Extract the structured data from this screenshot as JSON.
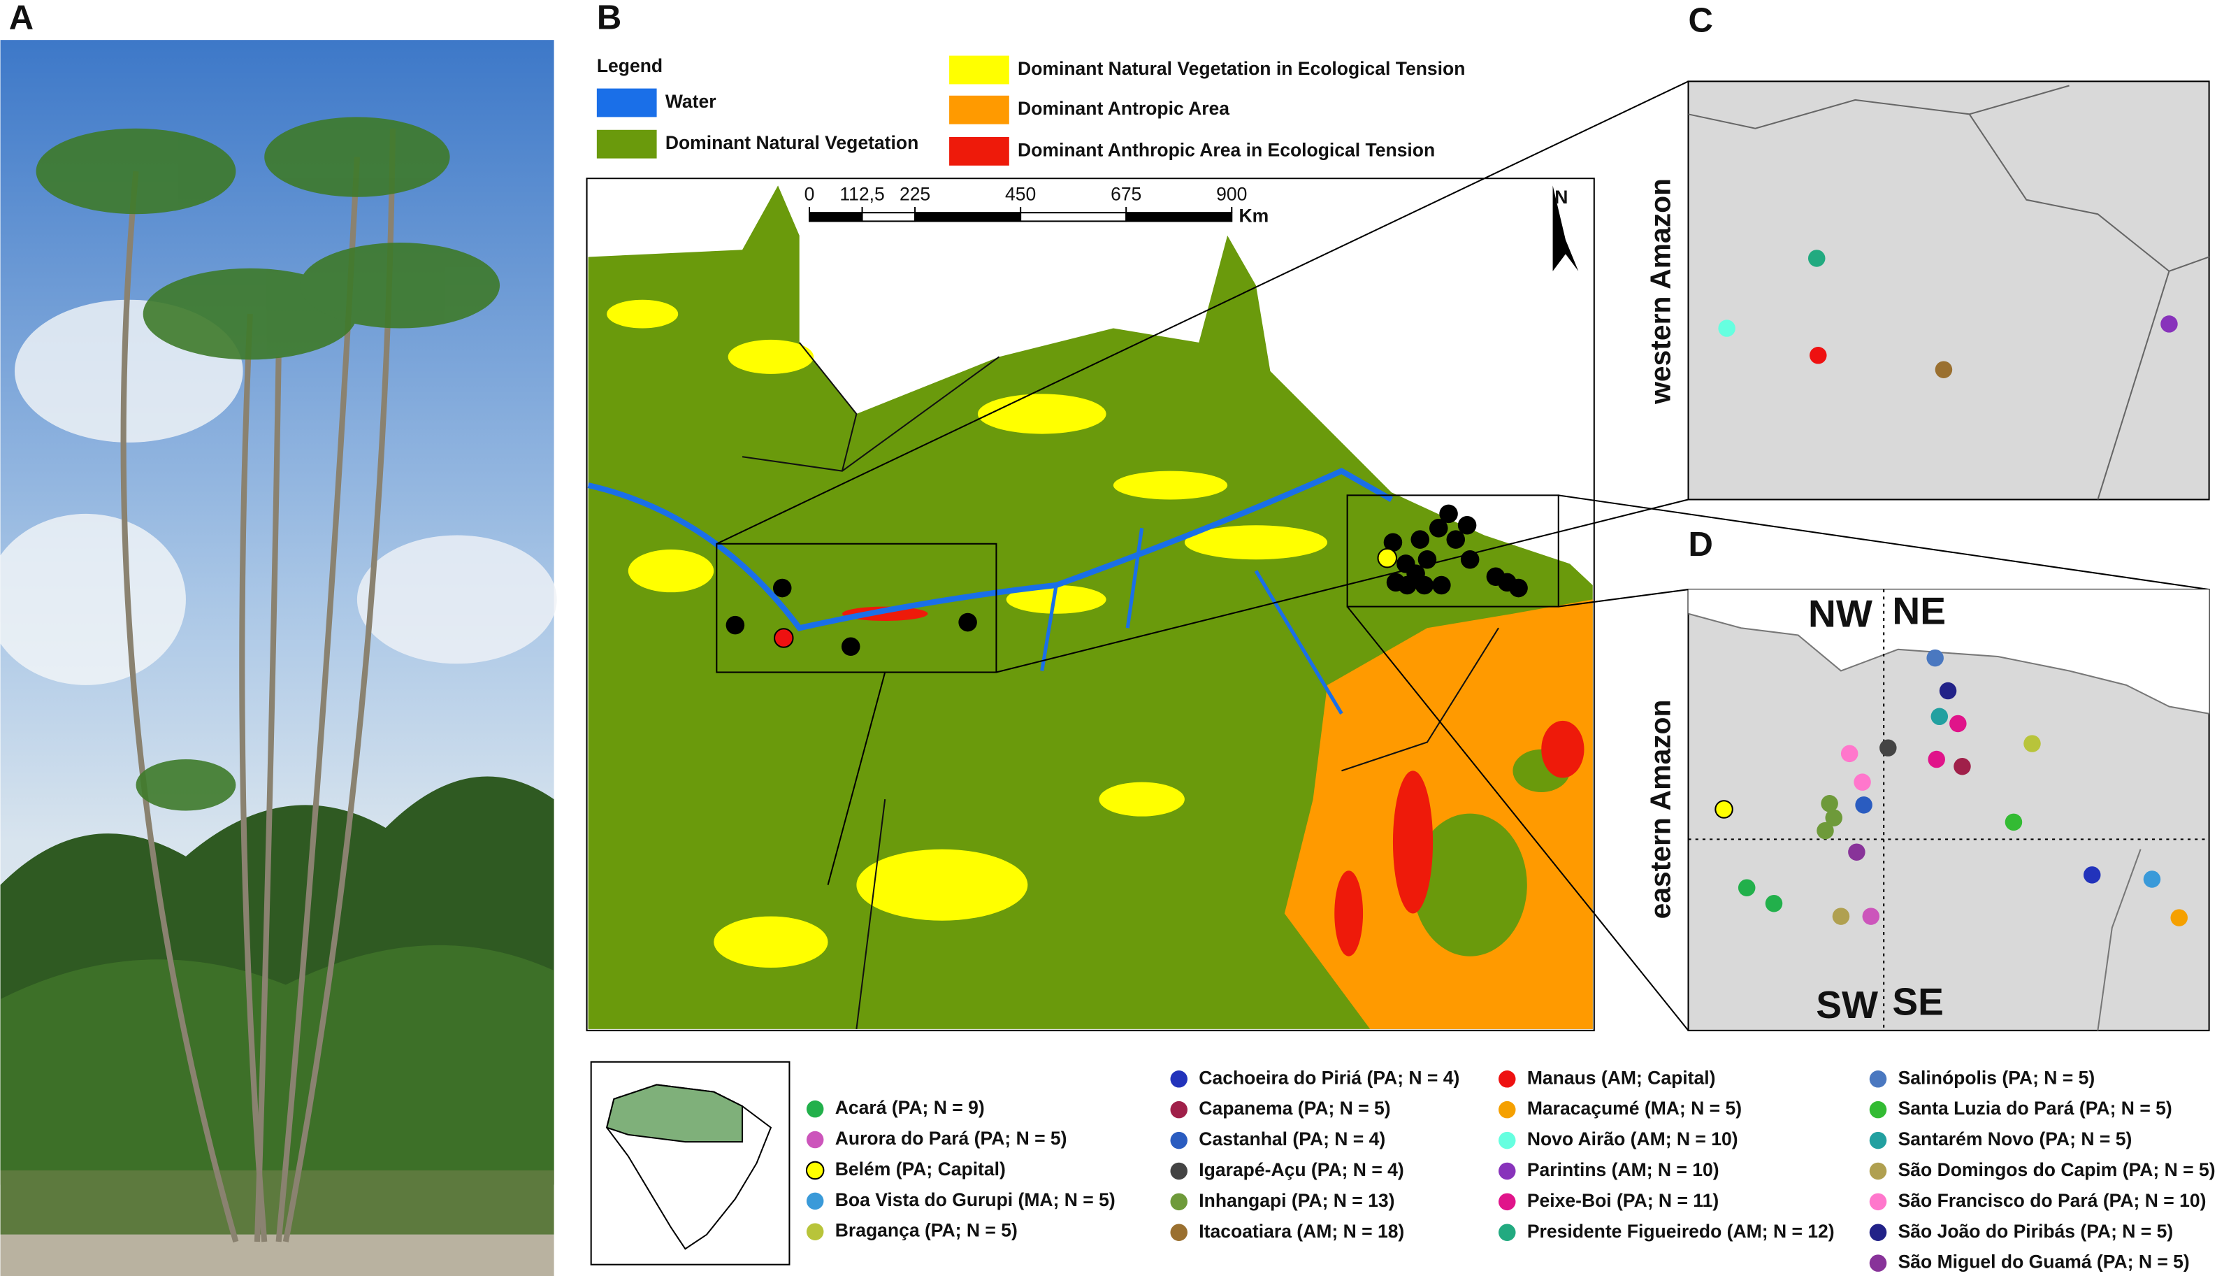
{
  "panels": {
    "a": "A",
    "b": "B",
    "c": "C",
    "d": "D"
  },
  "map_legend": {
    "title": "Legend",
    "items": [
      {
        "label": "Water",
        "color": "#1a6fe8"
      },
      {
        "label": "Dominant Natural Vegetation",
        "color": "#6a9a0c"
      },
      {
        "label": "Dominant Natural Vegetation in Ecological Tension",
        "color": "#ffff00"
      },
      {
        "label": "Dominant Antropic Area",
        "color": "#ff9a00"
      },
      {
        "label": "Dominant Anthropic Area in Ecological Tension",
        "color": "#ee1a0a"
      }
    ]
  },
  "scale_bar": {
    "ticks": [
      0,
      {
        "value": 112.5,
        "label": "112,5"
      },
      225,
      450,
      675,
      900
    ],
    "unit": "Km"
  },
  "north": "N",
  "panel_c": {
    "label": "western Amazon"
  },
  "panel_d": {
    "label": "eastern Amazon",
    "quadrants": [
      "NW",
      "NE",
      "SW",
      "SE"
    ]
  },
  "sites": [
    {
      "label": "Acará (PA; N = 9)",
      "color": "#22b04b"
    },
    {
      "label": "Aurora do Pará (PA; N = 5)",
      "color": "#cc55bb"
    },
    {
      "label": "Belém (PA; Capital)",
      "color": "#ffff00"
    },
    {
      "label": "Boa Vista do Gurupi (MA; N = 5)",
      "color": "#3a9ad9"
    },
    {
      "label": "Bragança (PA; N = 5)",
      "color": "#b8c43a"
    },
    {
      "label": "Cachoeira do Piriá (PA; N = 4)",
      "color": "#2233bb"
    },
    {
      "label": "Capanema (PA; N = 5)",
      "color": "#a0204a"
    },
    {
      "label": "Castanhal (PA; N = 4)",
      "color": "#2a5cc0"
    },
    {
      "label": "Igarapé-Açu (PA; N = 4)",
      "color": "#444444"
    },
    {
      "label": "Inhangapi (PA; N = 13)",
      "color": "#6e9a3a"
    },
    {
      "label": "Itacoatiara (AM; N = 18)",
      "color": "#9a7030"
    },
    {
      "label": "Manaus (AM; Capital)",
      "color": "#ee1111"
    },
    {
      "label": "Maracaçumé (MA; N = 5)",
      "color": "#f5a000"
    },
    {
      "label": "Novo Airão (AM; N = 10)",
      "color": "#66ffe0"
    },
    {
      "label": "Parintins (AM; N = 10)",
      "color": "#8833bb"
    },
    {
      "label": "Peixe-Boi (PA; N = 11)",
      "color": "#e0148a"
    },
    {
      "label": "Presidente Figueiredo (AM; N = 12)",
      "color": "#22aa80"
    },
    {
      "label": "Salinópolis (PA; N = 5)",
      "color": "#4a78c0"
    },
    {
      "label": "Santa Luzia do Pará (PA; N = 5)",
      "color": "#33bb33"
    },
    {
      "label": "Santarém Novo (PA; N = 5)",
      "color": "#22a0a0"
    },
    {
      "label": "São Domingos do Capim (PA; N = 5)",
      "color": "#b0a050"
    },
    {
      "label": "São Francisco do Pará (PA; N = 10)",
      "color": "#ff77cc"
    },
    {
      "label": "São João do Piribás (PA; N = 5)",
      "color": "#222288"
    },
    {
      "label": "São Miguel do Guamá (PA; N = 5)",
      "color": "#883399"
    }
  ]
}
